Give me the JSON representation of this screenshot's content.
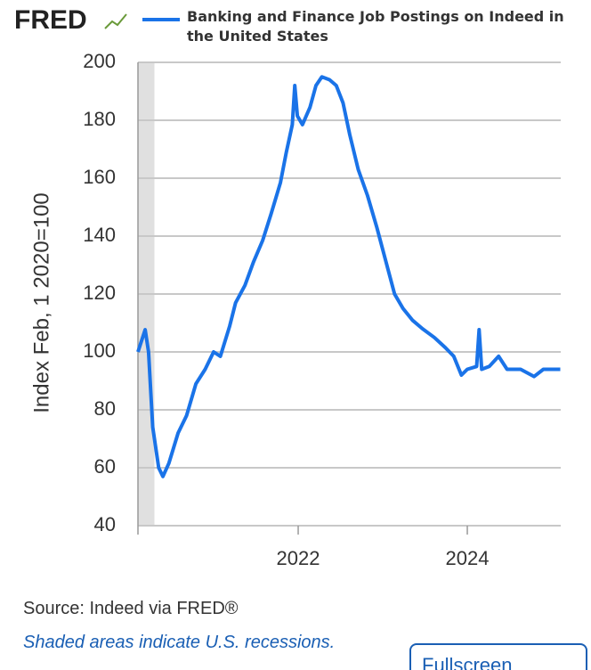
{
  "logo": "FRED",
  "chart_data": {
    "type": "line",
    "ylabel": "Index Feb, 1 2020=100",
    "x": [
      2020.105,
      2020.19,
      2020.23,
      2020.28,
      2020.35,
      2020.4,
      2020.47,
      2020.58,
      2020.68,
      2020.79,
      2020.9,
      2021.0,
      2021.08,
      2021.19,
      2021.26,
      2021.37,
      2021.47,
      2021.58,
      2021.68,
      2021.79,
      2021.86,
      2021.93,
      2021.96,
      2021.99,
      2022.05,
      2022.14,
      2022.21,
      2022.28,
      2022.37,
      2022.45,
      2022.53,
      2022.61,
      2022.71,
      2022.82,
      2022.93,
      2023.03,
      2023.14,
      2023.24,
      2023.35,
      2023.47,
      2023.61,
      2023.74,
      2023.84,
      2023.93,
      2024.0,
      2024.11,
      2024.14,
      2024.17,
      2024.26,
      2024.37,
      2024.47,
      2024.63,
      2024.79,
      2024.9,
      2025.0,
      2025.1
    ],
    "series": [
      {
        "name": "Banking and Finance Job Postings on Indeed in the United States",
        "color": "#1a73e8",
        "values": [
          100,
          107.7,
          100,
          74,
          60,
          57,
          61.5,
          72,
          78,
          89,
          94,
          100,
          98.5,
          109,
          117,
          123,
          131,
          138.5,
          147.7,
          158.5,
          169,
          178.5,
          192,
          181.5,
          178.5,
          184.5,
          192,
          195,
          194,
          192,
          186,
          175,
          163,
          154,
          143,
          132,
          120,
          115,
          111,
          108,
          105,
          101.5,
          98.5,
          92,
          94,
          95,
          107.7,
          94,
          95,
          98.5,
          94,
          94,
          91.5,
          94,
          94,
          94
        ]
      }
    ],
    "recessions": [
      [
        2020.105,
        2020.3
      ]
    ],
    "xlim": [
      2020.105,
      2025.105
    ],
    "xticks": [
      2022,
      2024
    ],
    "ylim": [
      40,
      200
    ],
    "yticks": [
      40,
      60,
      80,
      100,
      120,
      140,
      160,
      180,
      200
    ],
    "grid": true
  },
  "source": "Source: Indeed via FRED®",
  "note": "Shaded areas indicate U.S. recessions.",
  "button": "Fullscreen"
}
